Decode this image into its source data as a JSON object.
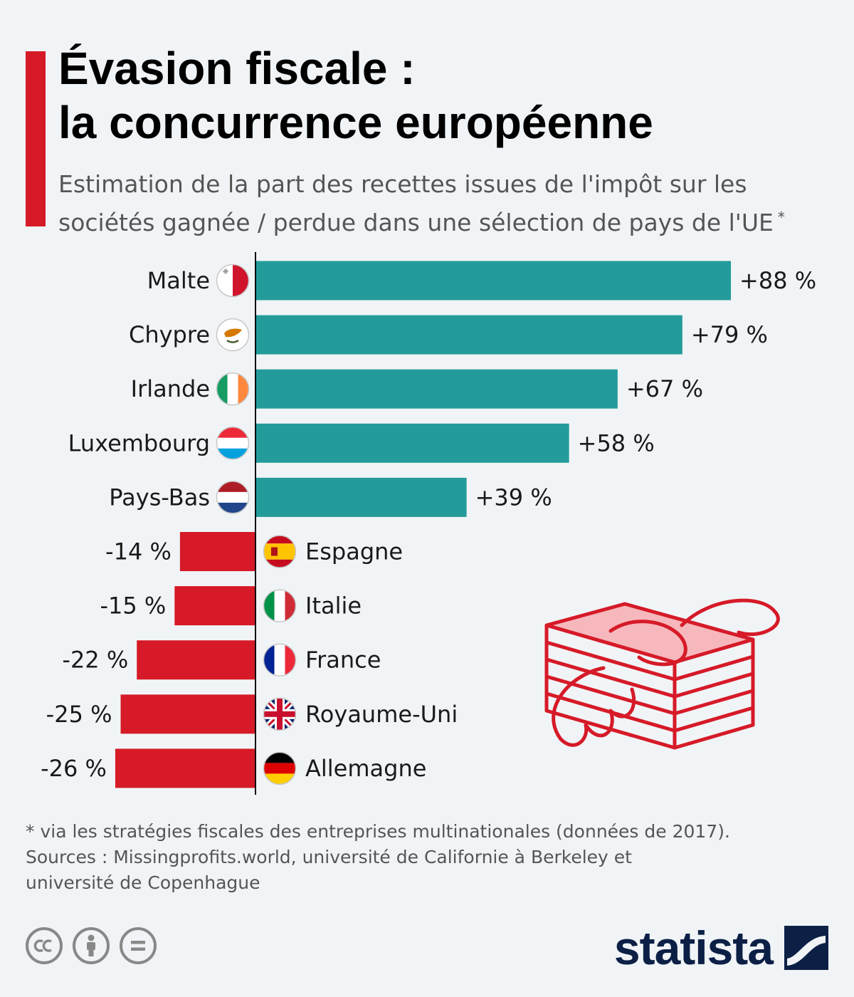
{
  "title_line1": "Évasion fiscale :",
  "title_line2": "la concurrence européenne",
  "subtitle_line1": "Estimation de la part des recettes issues de l'impôt sur les",
  "subtitle_line2": "sociétés gagnée / perdue dans une sélection de pays de l'UE",
  "subtitle_marker": "*",
  "colors": {
    "positive": "#249b9b",
    "negative": "#d61a28",
    "accent": "#d61a28",
    "brand": "#0c2046"
  },
  "chart_data": {
    "type": "bar",
    "orientation": "horizontal",
    "categories": [
      "Malte",
      "Chypre",
      "Irlande",
      "Luxembourg",
      "Pays-Bas",
      "Espagne",
      "Italie",
      "France",
      "Royaume-Uni",
      "Allemagne"
    ],
    "values": [
      88,
      79,
      67,
      58,
      39,
      -14,
      -15,
      -22,
      -25,
      -26
    ],
    "value_labels": [
      "+88 %",
      "+79 %",
      "+67 %",
      "+58 %",
      "+39 %",
      "-14 %",
      "-15 %",
      "-22 %",
      "-25 %",
      "-26 %"
    ],
    "flags": [
      "malta-flag-icon",
      "cyprus-flag-icon",
      "ireland-flag-icon",
      "luxembourg-flag-icon",
      "netherlands-flag-icon",
      "spain-flag-icon",
      "italy-flag-icon",
      "france-flag-icon",
      "uk-flag-icon",
      "germany-flag-icon"
    ],
    "unit": "%",
    "grid": false,
    "legend": "none"
  },
  "footnote": "* via les stratégies fiscales des entreprises multinationales (données de 2017).",
  "sources_line1": "Sources : Missingprofits.world, université de Californie à Berkeley et",
  "sources_line2": "université de Copenhague",
  "license_icons": [
    "creative-commons-icon",
    "attribution-icon",
    "no-derivatives-icon"
  ],
  "brand": "statista",
  "illustration": "flying-money-stack-icon"
}
